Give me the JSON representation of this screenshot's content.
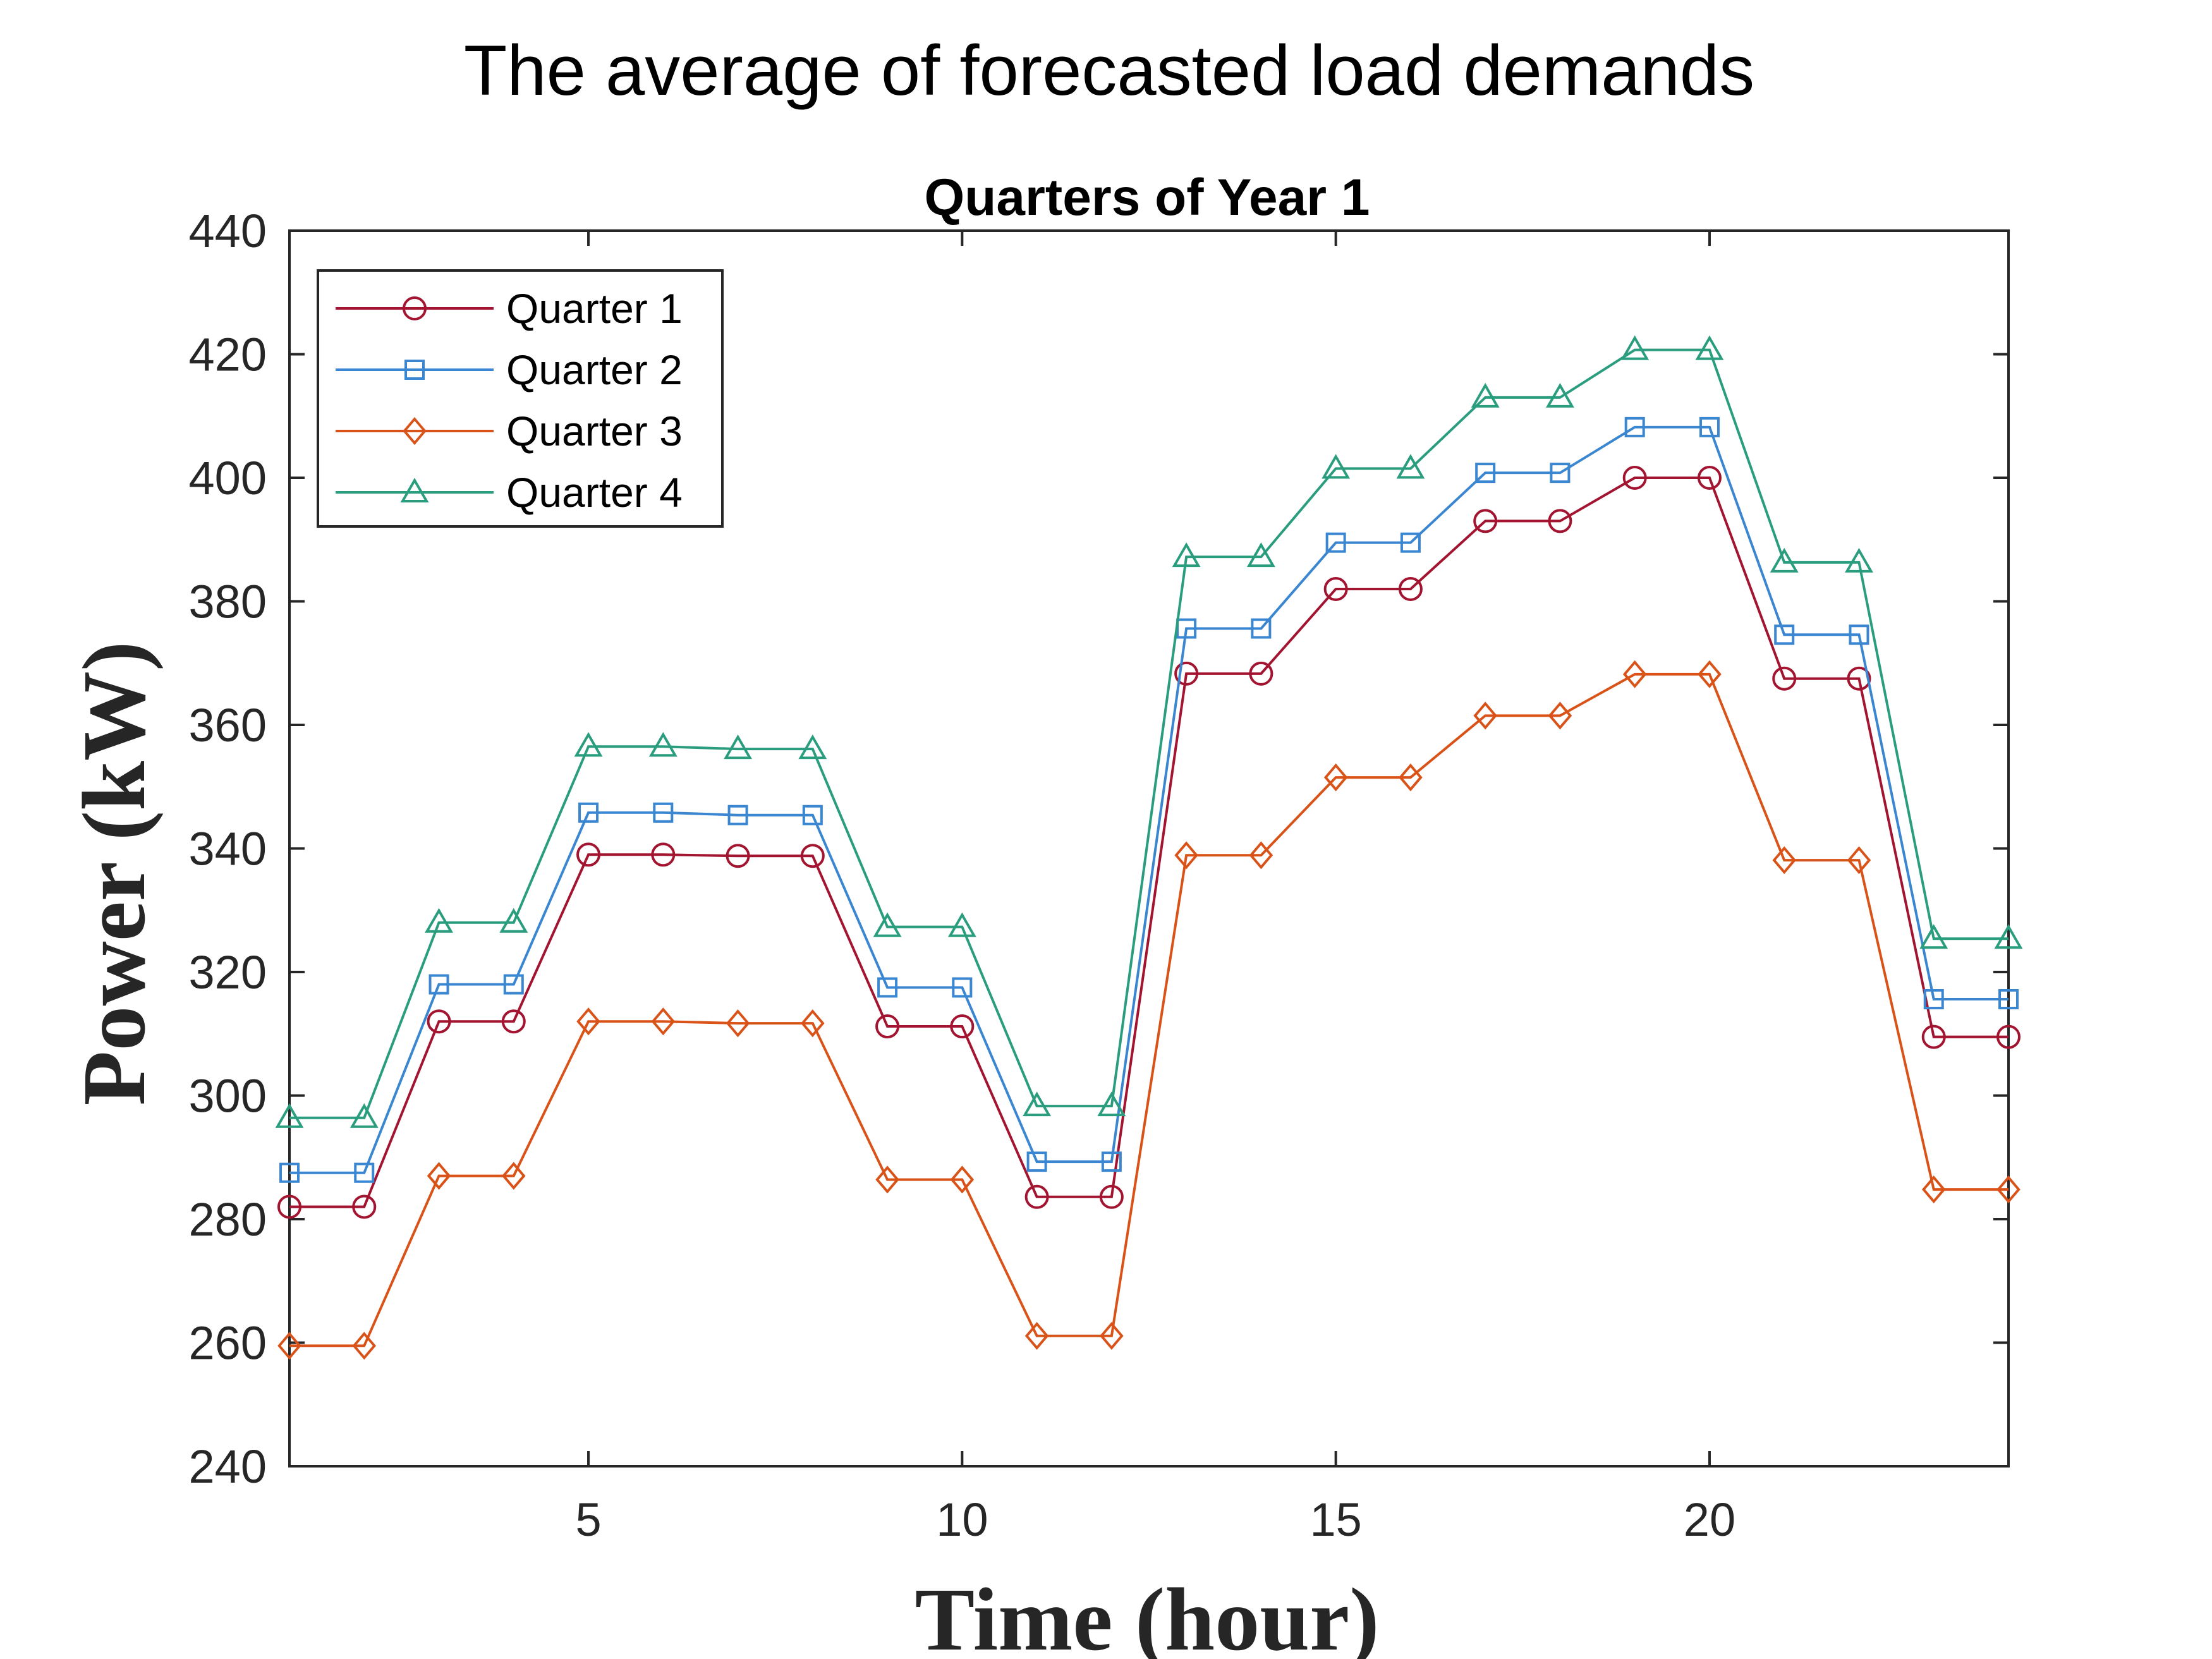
{
  "chart_data": {
    "type": "line",
    "suptitle": "The average of forecasted load demands",
    "title": "Quarters of Year 1",
    "xlabel": "Time (hour)",
    "ylabel": "Power (kW)",
    "xlim": [
      1,
      24
    ],
    "ylim": [
      240,
      440
    ],
    "xticks": [
      5,
      10,
      15,
      20
    ],
    "yticks": [
      240,
      260,
      280,
      300,
      320,
      340,
      360,
      380,
      400,
      420,
      440
    ],
    "legend_position": "top-left",
    "grid": false,
    "x": [
      1,
      2,
      3,
      4,
      5,
      6,
      7,
      8,
      9,
      10,
      11,
      12,
      13,
      14,
      15,
      16,
      17,
      18,
      19,
      20,
      21,
      22,
      23,
      24
    ],
    "series": [
      {
        "name": "Quarter 1",
        "color": "#A2142F",
        "marker": "circle",
        "values": [
          282,
          282,
          312,
          312,
          339,
          339,
          338.8,
          338.8,
          311.2,
          311.2,
          283.6,
          283.6,
          368.3,
          368.3,
          382,
          382,
          393,
          393,
          400,
          400,
          367.5,
          367.5,
          309.5,
          309.5
        ]
      },
      {
        "name": "Quarter 2",
        "color": "#3A86D0",
        "marker": "square",
        "values": [
          287.5,
          287.5,
          318,
          318,
          345.8,
          345.8,
          345.4,
          345.4,
          317.5,
          317.5,
          289.3,
          289.3,
          375.6,
          375.6,
          389.5,
          389.5,
          400.8,
          400.8,
          408.2,
          408.2,
          374.6,
          374.6,
          315.6,
          315.6
        ]
      },
      {
        "name": "Quarter 3",
        "color": "#D95319",
        "marker": "diamond",
        "values": [
          259.5,
          259.5,
          287,
          287,
          312,
          312,
          311.7,
          311.7,
          286.4,
          286.4,
          261.1,
          261.1,
          338.9,
          338.9,
          351.5,
          351.5,
          361.5,
          361.5,
          368.2,
          368.2,
          338.1,
          338.1,
          284.8,
          284.8
        ]
      },
      {
        "name": "Quarter 4",
        "color": "#2A9D7E",
        "marker": "triangle",
        "values": [
          296.4,
          296.4,
          328,
          328,
          356.5,
          356.5,
          356.1,
          356.1,
          327.3,
          327.3,
          298.3,
          298.3,
          387.2,
          387.2,
          401.5,
          401.5,
          413,
          413,
          420.7,
          420.7,
          386.3,
          386.3,
          325.4,
          325.4
        ]
      }
    ]
  }
}
